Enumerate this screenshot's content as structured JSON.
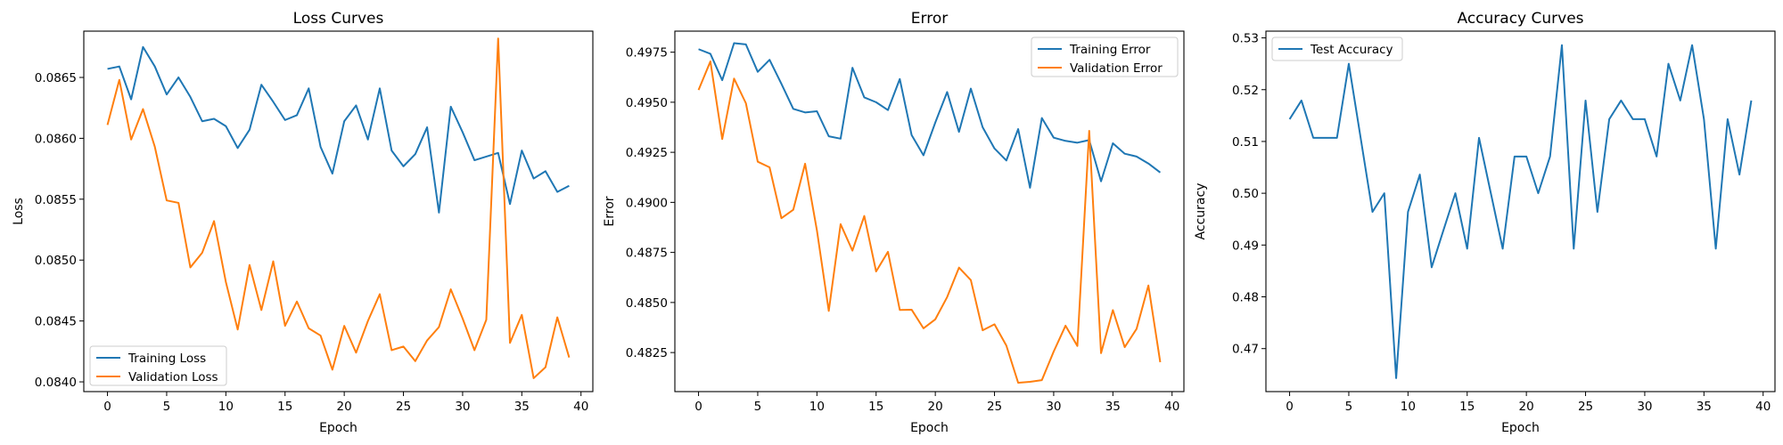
{
  "chart_data": [
    {
      "type": "line",
      "title": "Loss Curves",
      "xlabel": "Epoch",
      "ylabel": "Loss",
      "xlim": [
        -2,
        41
      ],
      "ylim": [
        0.08392,
        0.08688
      ],
      "xticks": [
        0,
        5,
        10,
        15,
        20,
        25,
        30,
        35,
        40
      ],
      "yticks": [
        0.084,
        0.0845,
        0.085,
        0.0855,
        0.086,
        0.0865
      ],
      "ytick_labels": [
        "0.0840",
        "0.0845",
        "0.0850",
        "0.0855",
        "0.0860",
        "0.0865"
      ],
      "legend_position": "lower-left",
      "grid": false,
      "x": [
        0,
        1,
        2,
        3,
        4,
        5,
        6,
        7,
        8,
        9,
        10,
        11,
        12,
        13,
        14,
        15,
        16,
        17,
        18,
        19,
        20,
        21,
        22,
        23,
        24,
        25,
        26,
        27,
        28,
        29,
        30,
        31,
        32,
        33,
        34,
        35,
        36,
        37,
        38,
        39
      ],
      "series": [
        {
          "name": "Training Loss",
          "color": "#1f77b4",
          "values": [
            0.08657,
            0.08659,
            0.08632,
            0.08675,
            0.08659,
            0.08636,
            0.0865,
            0.08634,
            0.08614,
            0.08616,
            0.0861,
            0.08592,
            0.08607,
            0.08644,
            0.0863,
            0.08615,
            0.08619,
            0.08641,
            0.08593,
            0.08571,
            0.08614,
            0.08627,
            0.08599,
            0.08641,
            0.0859,
            0.08577,
            0.08587,
            0.08609,
            0.08539,
            0.08626,
            0.08605,
            0.08582,
            0.08585,
            0.08588,
            0.08546,
            0.0859,
            0.08567,
            0.08573,
            0.08556,
            0.08561
          ]
        },
        {
          "name": "Validation Loss",
          "color": "#ff7f0e",
          "values": [
            0.08611,
            0.08648,
            0.08599,
            0.08624,
            0.08593,
            0.08549,
            0.08547,
            0.08494,
            0.08506,
            0.08532,
            0.08482,
            0.08443,
            0.08496,
            0.08459,
            0.08499,
            0.08446,
            0.08466,
            0.08444,
            0.08438,
            0.0841,
            0.08446,
            0.08424,
            0.0845,
            0.08472,
            0.08426,
            0.08429,
            0.08417,
            0.08434,
            0.08445,
            0.08476,
            0.08452,
            0.08426,
            0.08451,
            0.08682,
            0.08432,
            0.08455,
            0.08403,
            0.08412,
            0.08453,
            0.0842
          ]
        }
      ]
    },
    {
      "type": "line",
      "title": "Error",
      "xlabel": "Epoch",
      "ylabel": "Error",
      "xlim": [
        -2,
        41
      ],
      "ylim": [
        0.48055,
        0.49855
      ],
      "xticks": [
        0,
        5,
        10,
        15,
        20,
        25,
        30,
        35,
        40
      ],
      "yticks": [
        0.4825,
        0.485,
        0.4875,
        0.49,
        0.4925,
        0.495,
        0.4975
      ],
      "ytick_labels": [
        "0.4825",
        "0.4850",
        "0.4875",
        "0.4900",
        "0.4925",
        "0.4950",
        "0.4975"
      ],
      "legend_position": "top-right",
      "grid": false,
      "x": [
        0,
        1,
        2,
        3,
        4,
        5,
        6,
        7,
        8,
        9,
        10,
        11,
        12,
        13,
        14,
        15,
        16,
        17,
        18,
        19,
        20,
        21,
        22,
        23,
        24,
        25,
        26,
        27,
        28,
        29,
        30,
        31,
        32,
        33,
        34,
        35,
        36,
        37,
        38,
        39
      ],
      "series": [
        {
          "name": "Training Error",
          "color": "#1f77b4",
          "values": [
            0.49765,
            0.49742,
            0.4961,
            0.49795,
            0.49789,
            0.49652,
            0.49712,
            0.49592,
            0.49467,
            0.49449,
            0.49455,
            0.4933,
            0.49318,
            0.49672,
            0.49524,
            0.495,
            0.49461,
            0.49616,
            0.49336,
            0.49235,
            0.49399,
            0.49551,
            0.49352,
            0.49568,
            0.49375,
            0.49269,
            0.49209,
            0.49366,
            0.49073,
            0.49421,
            0.49323,
            0.49307,
            0.49298,
            0.49311,
            0.49105,
            0.49295,
            0.49243,
            0.49229,
            0.49194,
            0.49149
          ]
        },
        {
          "name": "Validation Error",
          "color": "#ff7f0e",
          "values": [
            0.49561,
            0.49704,
            0.49316,
            0.49618,
            0.49495,
            0.49203,
            0.49175,
            0.48921,
            0.48963,
            0.49193,
            0.4886,
            0.48458,
            0.48891,
            0.48759,
            0.48932,
            0.48655,
            0.48753,
            0.48463,
            0.48464,
            0.48371,
            0.48416,
            0.48527,
            0.48674,
            0.48612,
            0.48361,
            0.48391,
            0.48285,
            0.48099,
            0.48104,
            0.48112,
            0.48255,
            0.48384,
            0.48283,
            0.49357,
            0.48247,
            0.48462,
            0.48277,
            0.48368,
            0.48585,
            0.48202
          ]
        }
      ]
    },
    {
      "type": "line",
      "title": "Accuracy Curves",
      "xlabel": "Epoch",
      "ylabel": "Accuracy",
      "xlim": [
        -2,
        41
      ],
      "ylim": [
        0.4617,
        0.5313
      ],
      "xticks": [
        0,
        5,
        10,
        15,
        20,
        25,
        30,
        35,
        40
      ],
      "yticks": [
        0.47,
        0.48,
        0.49,
        0.5,
        0.51,
        0.52,
        0.53
      ],
      "ytick_labels": [
        "0.47",
        "0.48",
        "0.49",
        "0.50",
        "0.51",
        "0.52",
        "0.53"
      ],
      "legend_position": "top-left",
      "grid": false,
      "x": [
        0,
        1,
        2,
        3,
        4,
        5,
        6,
        7,
        8,
        9,
        10,
        11,
        12,
        13,
        14,
        15,
        16,
        17,
        18,
        19,
        20,
        21,
        22,
        23,
        24,
        25,
        26,
        27,
        28,
        29,
        30,
        31,
        32,
        33,
        34,
        35,
        36,
        37,
        38,
        39
      ],
      "series": [
        {
          "name": "Test Accuracy",
          "color": "#1f77b4",
          "values": [
            0.5143,
            0.5179,
            0.5107,
            0.5107,
            0.5107,
            0.525,
            0.5107,
            0.4964,
            0.5,
            0.4643,
            0.4964,
            0.5036,
            0.4857,
            0.4929,
            0.5,
            0.4893,
            0.5107,
            0.5,
            0.4893,
            0.5071,
            0.5071,
            0.5,
            0.5071,
            0.5286,
            0.4893,
            0.5179,
            0.4964,
            0.5143,
            0.5179,
            0.5143,
            0.5143,
            0.5071,
            0.525,
            0.5179,
            0.5286,
            0.5143,
            0.4893,
            0.5143,
            0.5036,
            0.5179
          ]
        }
      ]
    }
  ]
}
